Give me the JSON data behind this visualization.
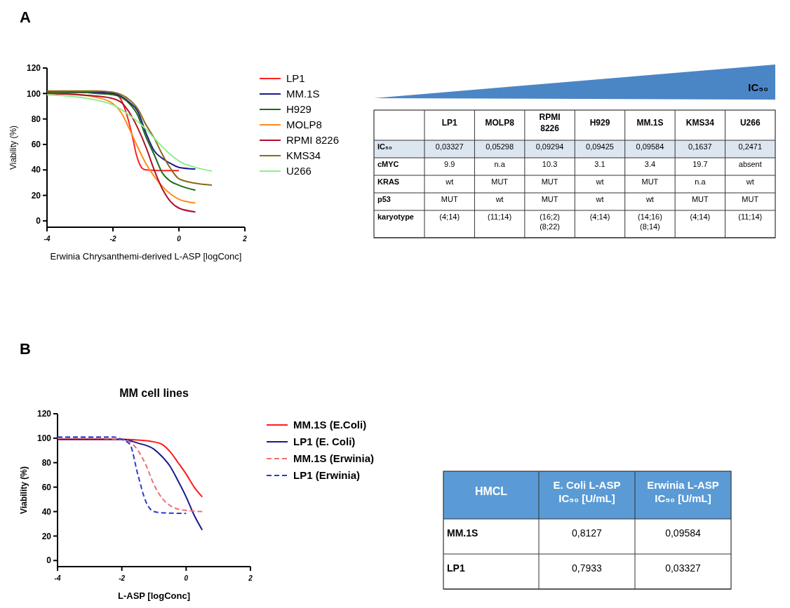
{
  "chart_data": [
    {
      "type": "line",
      "xlabel": "Erwinia Chrysanthemi-derived L-ASP [logConc]",
      "ylabel": "Viability (%)",
      "xlim": [
        -4,
        2
      ],
      "ylim": [
        -5,
        120
      ],
      "xticks": [
        -4,
        -2,
        0,
        2
      ],
      "yticks": [
        0,
        20,
        40,
        60,
        80,
        100,
        120
      ],
      "grid": false,
      "legend": "right",
      "line_style": "solid",
      "annotations": [
        "A"
      ],
      "series": [
        {
          "name": "LP1",
          "color": "#ff2020",
          "x": [
            -4,
            -3,
            -2,
            -1.8,
            -1.6,
            -1.4,
            -1.3,
            -1.2,
            -1.1,
            -1,
            -0.5,
            0
          ],
          "values": [
            101,
            101,
            100,
            97,
            85,
            65,
            53,
            45,
            41,
            40,
            39.5,
            39.5
          ]
        },
        {
          "name": "MM.1S",
          "color": "#1a1a8c",
          "x": [
            -4,
            -3,
            -2.5,
            -2,
            -1.5,
            -1.25,
            -1,
            -0.75,
            -0.5,
            -0.25,
            0,
            0.5
          ],
          "values": [
            101,
            101,
            101,
            100,
            93,
            86,
            69,
            55,
            49,
            45,
            42,
            40.7
          ]
        },
        {
          "name": "H929",
          "color": "#1a6b1a",
          "x": [
            -4,
            -3,
            -2.5,
            -2,
            -1.5,
            -1.25,
            -1,
            -0.75,
            -0.5,
            -0.25,
            0,
            0.5
          ],
          "values": [
            101,
            101,
            100,
            99,
            92,
            83,
            66,
            52,
            37.5,
            31,
            28,
            24
          ]
        },
        {
          "name": "MOLP8",
          "color": "#ff8c1a",
          "x": [
            -4,
            -3,
            -2.5,
            -2,
            -1.75,
            -1.5,
            -1.25,
            -1,
            -0.75,
            -0.5,
            -0.25,
            0,
            0.5
          ],
          "values": [
            100,
            99,
            97,
            92,
            85,
            72,
            58,
            45,
            35,
            27,
            21,
            17,
            14
          ]
        },
        {
          "name": "RPMI 8226",
          "color": "#b0102a",
          "x": [
            -4,
            -3,
            -2.5,
            -2,
            -1.75,
            -1.5,
            -1.25,
            -1,
            -0.75,
            -0.5,
            -0.25,
            0,
            0.5
          ],
          "values": [
            100,
            99,
            98,
            96,
            93,
            85,
            73,
            58,
            40,
            25,
            15,
            10,
            7
          ]
        },
        {
          "name": "KMS34",
          "color": "#8b6a14",
          "x": [
            -4,
            -3,
            -2.5,
            -2,
            -1.5,
            -1.25,
            -1,
            -0.75,
            -0.5,
            -0.25,
            0,
            0.5,
            1
          ],
          "values": [
            102,
            102,
            102,
            101,
            95,
            88,
            75.5,
            65,
            52,
            41,
            33,
            29.5,
            28
          ]
        },
        {
          "name": "U266",
          "color": "#90ee90",
          "x": [
            -4,
            -3,
            -2,
            -1.5,
            -1.25,
            -1,
            -0.75,
            -0.5,
            -0.25,
            0,
            0.5,
            1
          ],
          "values": [
            99,
            97,
            91,
            83,
            78,
            72,
            65,
            58,
            52,
            47,
            42,
            39
          ]
        }
      ]
    },
    {
      "type": "other",
      "annotations": [
        "IC₅₀"
      ],
      "categories": [
        "LP1",
        "MOLP8",
        "RPMI 8226",
        "H929",
        "MM.1S",
        "KMS34",
        "U266"
      ],
      "y_categories": [
        "IC₅₀",
        "cMYC",
        "KRAS",
        "p53",
        "karyotype"
      ],
      "cell_labels": [
        [
          "0,03327",
          "0,05298",
          "0,09294",
          "0,09425",
          "0,09584",
          "0,1637",
          "0,2471"
        ],
        [
          "9.9",
          "n.a",
          "10.3",
          "3.1",
          "3.4",
          "19.7",
          "absent"
        ],
        [
          "wt",
          "MUT",
          "MUT",
          "wt",
          "MUT",
          "n.a",
          "wt"
        ],
        [
          "MUT",
          "wt",
          "MUT",
          "wt",
          "wt",
          "MUT",
          "MUT"
        ],
        [
          "(4;14)",
          "(11;14)",
          "(16;2)\n(8;22)",
          "(4;14)",
          "(14;16)\n(8;14)",
          "(4;14)",
          "(11;14)"
        ]
      ]
    },
    {
      "type": "line",
      "title": "MM cell lines",
      "xlabel": "L-ASP [logConc]",
      "ylabel": "Viability (%)",
      "xlim": [
        -4,
        2
      ],
      "ylim": [
        -5,
        120
      ],
      "xticks": [
        -4,
        -2,
        0,
        2
      ],
      "yticks": [
        0,
        20,
        40,
        60,
        80,
        100,
        120
      ],
      "grid": false,
      "legend": "right",
      "annotations": [
        "B"
      ],
      "series": [
        {
          "name": "MM.1S (E.Coli)",
          "color": "#ff1a1a",
          "line_style": "solid",
          "x": [
            -4,
            -3,
            -2,
            -1.5,
            -1,
            -0.75,
            -0.5,
            -0.25,
            0,
            0.25,
            0.5
          ],
          "values": [
            99,
            99,
            99,
            98.5,
            97,
            95,
            89,
            80,
            70.6,
            60,
            52
          ]
        },
        {
          "name": "LP1 (E. Coli)",
          "color": "#1a1a8c",
          "line_style": "solid",
          "x": [
            -4,
            -3,
            -2,
            -1.5,
            -1,
            -0.75,
            -0.5,
            -0.25,
            0,
            0.25,
            0.5
          ],
          "values": [
            99,
            99,
            99,
            96,
            91,
            85,
            77,
            65,
            52,
            37,
            25
          ]
        },
        {
          "name": "MM.1S (Erwinia)",
          "color": "#f07070",
          "line_style": "dashed",
          "x": [
            -4,
            -3,
            -2,
            -1.75,
            -1.5,
            -1.25,
            -1,
            -0.75,
            -0.5,
            -0.25,
            0,
            0.5
          ],
          "values": [
            100,
            100,
            99,
            97,
            90,
            78,
            62,
            51,
            45,
            42,
            41,
            40
          ]
        },
        {
          "name": "LP1 (Erwinia)",
          "color": "#2a3ad0",
          "line_style": "dashed",
          "x": [
            -4,
            -3,
            -2.25,
            -2,
            -1.75,
            -1.5,
            -1.25,
            -1,
            -0.75,
            0
          ],
          "values": [
            101,
            101,
            101,
            99,
            95,
            70,
            48,
            40,
            39,
            38.5
          ]
        }
      ]
    },
    {
      "type": "other",
      "ylabel": "HMCL",
      "categories": [
        "E. Coli L-ASP\nIC₅₀  [U/mL]",
        "Erwinia L-ASP\nIC₅₀  [U/mL]"
      ],
      "y_categories": [
        "MM.1S",
        "LP1"
      ],
      "cell_labels": [
        [
          "0,8127",
          "0,09584"
        ],
        [
          "0,7933",
          "0,03327"
        ]
      ]
    }
  ]
}
